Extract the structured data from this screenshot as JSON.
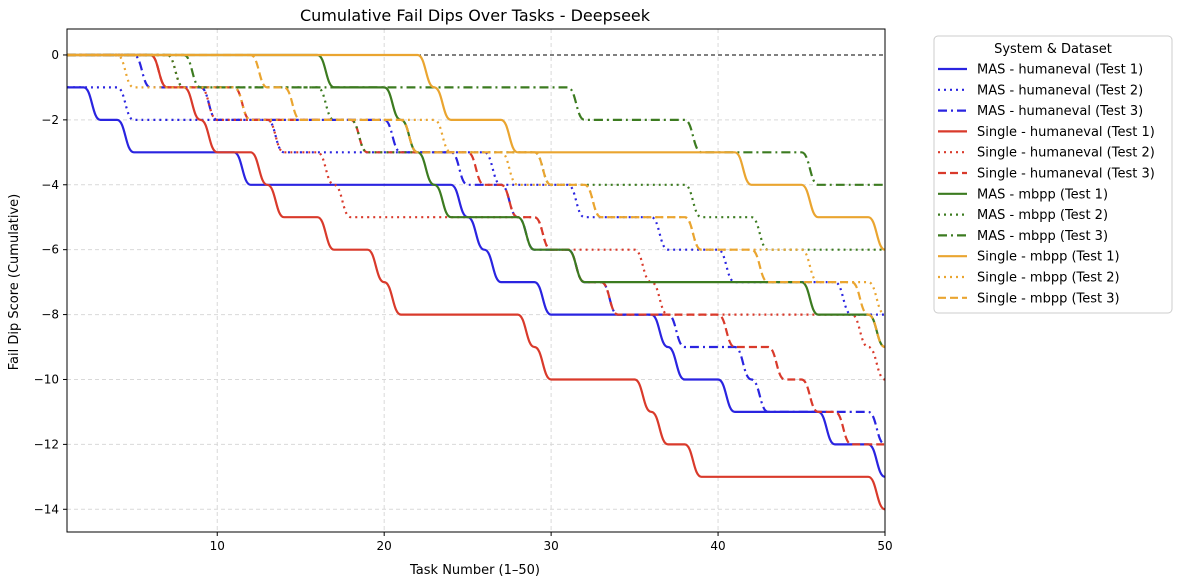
{
  "chart_data": {
    "type": "line",
    "title": "Cumulative Fail Dips Over Tasks - Deepseek",
    "xlabel": "Task Number (1–50)",
    "ylabel": "Fail Dip Score (Cumulative)",
    "xlim": [
      1,
      50
    ],
    "ylim": [
      -14.7,
      0.8
    ],
    "xticks": [
      10,
      20,
      30,
      40,
      50
    ],
    "yticks": [
      0,
      -2,
      -4,
      -6,
      -8,
      -10,
      -12,
      -14
    ],
    "grid": true,
    "reference_line_y": 0,
    "legend": {
      "title": "System & Dataset",
      "placement": "outside-right"
    },
    "x": [
      1,
      2,
      3,
      4,
      5,
      6,
      7,
      8,
      9,
      10,
      11,
      12,
      13,
      14,
      15,
      16,
      17,
      18,
      19,
      20,
      21,
      22,
      23,
      24,
      25,
      26,
      27,
      28,
      29,
      30,
      31,
      32,
      33,
      34,
      35,
      36,
      37,
      38,
      39,
      40,
      41,
      42,
      43,
      44,
      45,
      46,
      47,
      48,
      49,
      50
    ],
    "series": [
      {
        "name": "MAS - humaneval (Test 1)",
        "color": "#2a24e0",
        "dash": "solid",
        "values": [
          -1,
          -1,
          -2,
          -2,
          -3,
          -3,
          -3,
          -3,
          -3,
          -3,
          -3,
          -4,
          -4,
          -4,
          -4,
          -4,
          -4,
          -4,
          -4,
          -4,
          -4,
          -4,
          -4,
          -4,
          -5,
          -6,
          -7,
          -7,
          -7,
          -8,
          -8,
          -8,
          -8,
          -8,
          -8,
          -8,
          -9,
          -10,
          -10,
          -10,
          -11,
          -11,
          -11,
          -11,
          -11,
          -11,
          -12,
          -12,
          -12,
          -13
        ]
      },
      {
        "name": "MAS - humaneval (Test 2)",
        "color": "#2a24e0",
        "dash": "dotted",
        "values": [
          -1,
          -1,
          -1,
          -1,
          -2,
          -2,
          -2,
          -2,
          -2,
          -2,
          -2,
          -2,
          -2,
          -3,
          -3,
          -3,
          -3,
          -3,
          -3,
          -3,
          -3,
          -3,
          -3,
          -3,
          -3,
          -3,
          -4,
          -4,
          -4,
          -4,
          -4,
          -5,
          -5,
          -5,
          -5,
          -5,
          -6,
          -6,
          -6,
          -6,
          -7,
          -7,
          -7,
          -7,
          -7,
          -7,
          -7,
          -8,
          -8,
          -8
        ]
      },
      {
        "name": "MAS - humaneval (Test 3)",
        "color": "#2a24e0",
        "dash": "dashdot",
        "values": [
          0,
          0,
          0,
          0,
          0,
          -1,
          -1,
          -1,
          -1,
          -2,
          -2,
          -2,
          -2,
          -2,
          -2,
          -2,
          -2,
          -2,
          -2,
          -2,
          -3,
          -3,
          -3,
          -3,
          -4,
          -4,
          -4,
          -5,
          -6,
          -6,
          -6,
          -7,
          -7,
          -8,
          -8,
          -8,
          -8,
          -9,
          -9,
          -9,
          -9,
          -10,
          -11,
          -11,
          -11,
          -11,
          -11,
          -11,
          -11,
          -12
        ]
      },
      {
        "name": "Single - humaneval (Test 1)",
        "color": "#d93a2b",
        "dash": "solid",
        "values": [
          0,
          0,
          0,
          0,
          0,
          0,
          -1,
          -1,
          -2,
          -3,
          -3,
          -3,
          -4,
          -5,
          -5,
          -5,
          -6,
          -6,
          -6,
          -7,
          -8,
          -8,
          -8,
          -8,
          -8,
          -8,
          -8,
          -8,
          -9,
          -10,
          -10,
          -10,
          -10,
          -10,
          -10,
          -11,
          -12,
          -12,
          -13,
          -13,
          -13,
          -13,
          -13,
          -13,
          -13,
          -13,
          -13,
          -13,
          -13,
          -14
        ]
      },
      {
        "name": "Single - humaneval (Test 2)",
        "color": "#d93a2b",
        "dash": "dotted",
        "values": [
          0,
          0,
          0,
          0,
          0,
          0,
          0,
          -1,
          -1,
          -2,
          -2,
          -2,
          -2,
          -3,
          -3,
          -3,
          -4,
          -5,
          -5,
          -5,
          -5,
          -5,
          -5,
          -5,
          -5,
          -5,
          -5,
          -5,
          -5,
          -6,
          -6,
          -6,
          -6,
          -6,
          -6,
          -7,
          -8,
          -8,
          -8,
          -8,
          -8,
          -8,
          -8,
          -8,
          -8,
          -8,
          -8,
          -8,
          -9,
          -10
        ]
      },
      {
        "name": "Single - humaneval (Test 3)",
        "color": "#d93a2b",
        "dash": "dashed",
        "values": [
          0,
          0,
          0,
          0,
          0,
          0,
          -1,
          -1,
          -1,
          -1,
          -1,
          -2,
          -2,
          -2,
          -2,
          -2,
          -2,
          -2,
          -3,
          -3,
          -3,
          -3,
          -3,
          -3,
          -3,
          -4,
          -4,
          -5,
          -5,
          -6,
          -6,
          -7,
          -7,
          -8,
          -8,
          -8,
          -8,
          -8,
          -8,
          -8,
          -9,
          -9,
          -9,
          -10,
          -10,
          -11,
          -11,
          -12,
          -12,
          -12
        ]
      },
      {
        "name": "MAS - mbpp (Test 1)",
        "color": "#3c7b20",
        "dash": "solid",
        "values": [
          0,
          0,
          0,
          0,
          0,
          0,
          0,
          0,
          0,
          0,
          0,
          0,
          0,
          0,
          0,
          0,
          -1,
          -1,
          -1,
          -1,
          -2,
          -3,
          -4,
          -5,
          -5,
          -5,
          -5,
          -5,
          -6,
          -6,
          -6,
          -7,
          -7,
          -7,
          -7,
          -7,
          -7,
          -7,
          -7,
          -7,
          -7,
          -7,
          -7,
          -7,
          -7,
          -8,
          -8,
          -8,
          -8,
          -9
        ]
      },
      {
        "name": "MAS - mbpp (Test 2)",
        "color": "#3c7b20",
        "dash": "dotted",
        "values": [
          0,
          0,
          0,
          0,
          0,
          0,
          0,
          -1,
          -1,
          -1,
          -1,
          -1,
          -1,
          -1,
          -1,
          -1,
          -2,
          -2,
          -3,
          -3,
          -3,
          -3,
          -3,
          -3,
          -3,
          -3,
          -3,
          -3,
          -3,
          -4,
          -4,
          -4,
          -4,
          -4,
          -4,
          -4,
          -4,
          -4,
          -5,
          -5,
          -5,
          -5,
          -6,
          -6,
          -6,
          -6,
          -6,
          -6,
          -6,
          -6
        ]
      },
      {
        "name": "MAS - mbpp (Test 3)",
        "color": "#3c7b20",
        "dash": "dashdot",
        "values": [
          0,
          0,
          0,
          0,
          0,
          0,
          0,
          0,
          -1,
          -1,
          -1,
          -1,
          -1,
          -1,
          -1,
          -1,
          -1,
          -1,
          -1,
          -1,
          -1,
          -1,
          -1,
          -1,
          -1,
          -1,
          -1,
          -1,
          -1,
          -1,
          -1,
          -2,
          -2,
          -2,
          -2,
          -2,
          -2,
          -2,
          -3,
          -3,
          -3,
          -3,
          -3,
          -3,
          -3,
          -4,
          -4,
          -4,
          -4,
          -4
        ]
      },
      {
        "name": "Single - mbpp (Test 1)",
        "color": "#eaa530",
        "dash": "solid",
        "values": [
          0,
          0,
          0,
          0,
          0,
          0,
          0,
          0,
          0,
          0,
          0,
          0,
          0,
          0,
          0,
          0,
          0,
          0,
          0,
          0,
          0,
          0,
          -1,
          -2,
          -2,
          -2,
          -2,
          -3,
          -3,
          -3,
          -3,
          -3,
          -3,
          -3,
          -3,
          -3,
          -3,
          -3,
          -3,
          -3,
          -3,
          -4,
          -4,
          -4,
          -4,
          -5,
          -5,
          -5,
          -5,
          -6
        ]
      },
      {
        "name": "Single - mbpp (Test 2)",
        "color": "#eaa530",
        "dash": "dotted",
        "values": [
          0,
          0,
          0,
          0,
          -1,
          -1,
          -1,
          -1,
          -1,
          -1,
          -1,
          -2,
          -2,
          -2,
          -2,
          -2,
          -2,
          -2,
          -2,
          -2,
          -2,
          -2,
          -2,
          -3,
          -3,
          -3,
          -3,
          -4,
          -4,
          -4,
          -4,
          -4,
          -5,
          -5,
          -5,
          -5,
          -5,
          -5,
          -6,
          -6,
          -6,
          -6,
          -6,
          -6,
          -6,
          -7,
          -7,
          -7,
          -7,
          -8
        ]
      },
      {
        "name": "Single - mbpp (Test 3)",
        "color": "#eaa530",
        "dash": "dashed",
        "values": [
          0,
          0,
          0,
          0,
          0,
          0,
          0,
          0,
          0,
          0,
          0,
          0,
          -1,
          -1,
          -2,
          -2,
          -2,
          -2,
          -2,
          -2,
          -2,
          -3,
          -3,
          -3,
          -3,
          -3,
          -3,
          -3,
          -3,
          -4,
          -4,
          -4,
          -5,
          -5,
          -5,
          -5,
          -5,
          -5,
          -6,
          -6,
          -6,
          -6,
          -7,
          -7,
          -7,
          -7,
          -7,
          -7,
          -8,
          -9
        ]
      }
    ]
  }
}
